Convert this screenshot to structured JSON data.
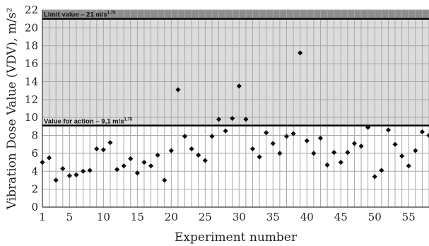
{
  "chart_data": {
    "type": "scatter",
    "xlabel": "Experiment number",
    "ylabel": "Vibration Dose Value (VDV), m/s²",
    "ylim": [
      0,
      22
    ],
    "xlim": [
      1,
      58
    ],
    "y_ticks": [
      "0",
      "2",
      "4",
      "6",
      "8",
      "10",
      "12",
      "14",
      "16",
      "18",
      "20",
      "22"
    ],
    "x_ticks": [
      "1",
      "5",
      "10",
      "15",
      "20",
      "25",
      "30",
      "35",
      "40",
      "45",
      "50",
      "55"
    ],
    "x_tick_values": [
      1,
      5,
      10,
      15,
      20,
      25,
      30,
      35,
      40,
      45,
      50,
      55
    ],
    "y_tick_values": [
      0,
      2,
      4,
      6,
      8,
      10,
      12,
      14,
      16,
      18,
      20,
      22
    ],
    "grid": true,
    "reference_lines": [
      {
        "label": "Limit value – 21 m/s",
        "sup": "1,75",
        "y": 21
      },
      {
        "label": "Value for action – 9,1 m/s",
        "sup": "1,75",
        "y": 9.1
      }
    ],
    "x": [
      1,
      2,
      3,
      4,
      5,
      6,
      7,
      8,
      9,
      10,
      11,
      12,
      13,
      14,
      15,
      16,
      17,
      18,
      19,
      20,
      21,
      22,
      23,
      24,
      25,
      26,
      27,
      28,
      29,
      30,
      31,
      32,
      33,
      34,
      35,
      36,
      37,
      38,
      39,
      40,
      41,
      42,
      43,
      44,
      45,
      46,
      47,
      48,
      49,
      50,
      51,
      52,
      53,
      54,
      55,
      56,
      57,
      58
    ],
    "y": [
      5.0,
      5.5,
      3.0,
      4.3,
      3.5,
      3.6,
      4.0,
      4.1,
      6.5,
      6.4,
      7.2,
      4.2,
      4.6,
      5.4,
      3.8,
      5.0,
      4.6,
      5.8,
      3.0,
      6.3,
      13.1,
      7.9,
      6.5,
      5.8,
      5.2,
      7.9,
      9.8,
      8.5,
      9.9,
      13.5,
      9.8,
      6.5,
      5.6,
      8.3,
      7.1,
      6.0,
      7.9,
      8.2,
      17.2,
      7.4,
      6.0,
      7.7,
      4.7,
      6.1,
      5.0,
      6.1,
      7.1,
      6.8,
      8.9,
      3.4,
      4.1,
      8.6,
      7.0,
      5.7,
      4.6,
      6.3,
      8.4,
      8.0
    ]
  }
}
